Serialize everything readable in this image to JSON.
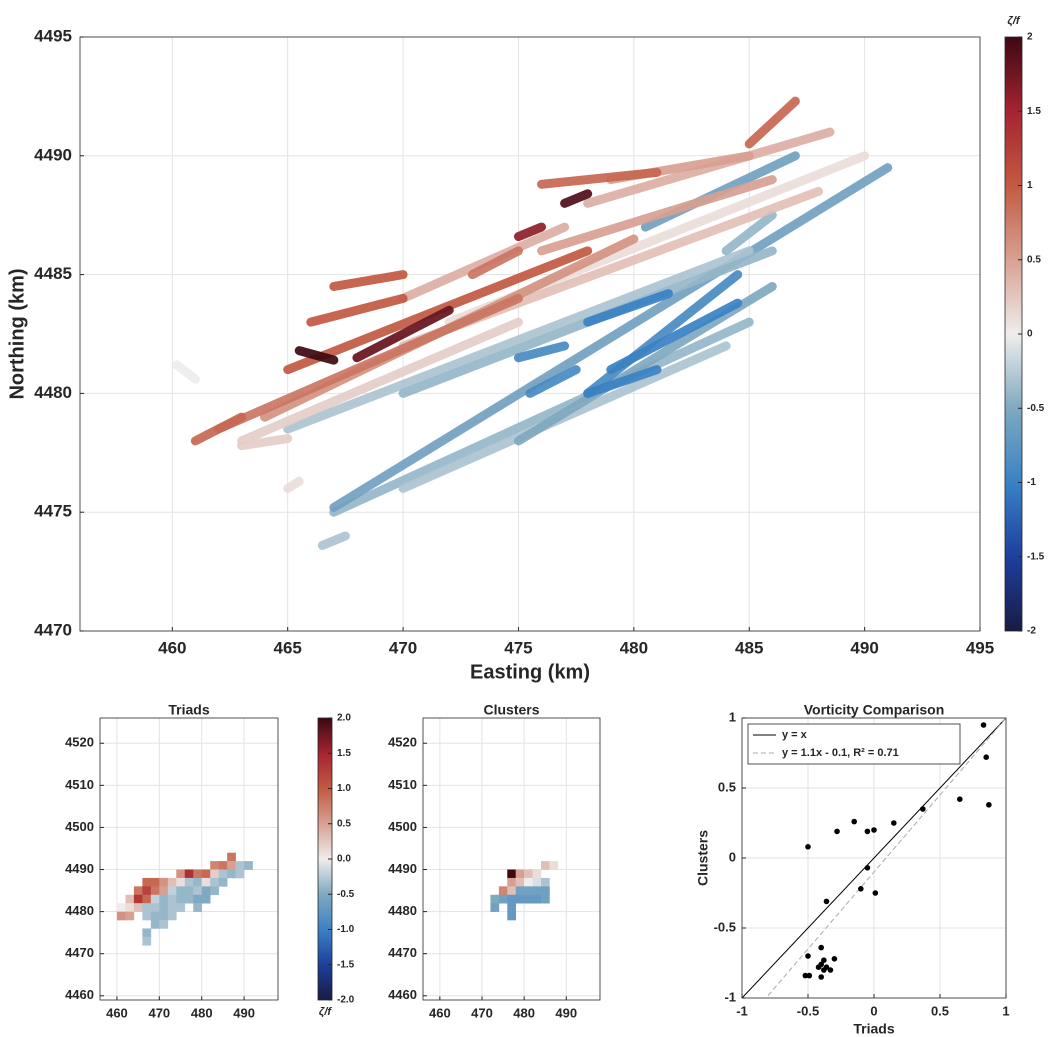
{
  "colormap": [
    [
      -2,
      "#181c43"
    ],
    [
      -1.5,
      "#1d3f9e"
    ],
    [
      -1,
      "#3a82c4"
    ],
    [
      -0.5,
      "#7fa9c0"
    ],
    [
      0,
      "#efedec"
    ],
    [
      0.5,
      "#d9a092"
    ],
    [
      1,
      "#c25a42"
    ],
    [
      1.5,
      "#a52430"
    ],
    [
      2,
      "#3c0912"
    ]
  ],
  "chart_data": [
    {
      "type": "track",
      "xlabel": "Easting (km)",
      "ylabel": "Northing (km)",
      "xlim": [
        456,
        495
      ],
      "ylim": [
        4470,
        4495
      ],
      "xticks": [
        460,
        465,
        470,
        475,
        480,
        485,
        490,
        495
      ],
      "yticks": [
        4470,
        4475,
        4480,
        4485,
        4490,
        4495
      ],
      "grid": true,
      "tracks": [
        {
          "x": [
            467,
            485
          ],
          "y": [
            4475,
            4483
          ],
          "value": -0.4
        },
        {
          "x": [
            467,
            491
          ],
          "y": [
            4475.2,
            4489.5
          ],
          "value": -0.6
        },
        {
          "x": [
            470,
            484
          ],
          "y": [
            4476,
            4482
          ],
          "value": -0.3
        },
        {
          "x": [
            475,
            486
          ],
          "y": [
            4478,
            4484.5
          ],
          "value": -0.5
        },
        {
          "x": [
            465,
            485
          ],
          "y": [
            4478.5,
            4486
          ],
          "value": -0.3
        },
        {
          "x": [
            470,
            486
          ],
          "y": [
            4480,
            4486
          ],
          "value": -0.4
        },
        {
          "x": [
            480.5,
            487
          ],
          "y": [
            4487,
            4490
          ],
          "value": -0.6
        },
        {
          "x": [
            484,
            486
          ],
          "y": [
            4486,
            4487.5
          ],
          "value": -0.4
        },
        {
          "x": [
            466.5,
            467.5
          ],
          "y": [
            4473.6,
            4474
          ],
          "value": -0.3
        },
        {
          "x": [
            478,
            484.5
          ],
          "y": [
            4480,
            4485
          ],
          "value": -0.9
        },
        {
          "x": [
            479,
            484.5
          ],
          "y": [
            4481,
            4483.8
          ],
          "value": -1.0
        },
        {
          "x": [
            478,
            481.5
          ],
          "y": [
            4483,
            4484.2
          ],
          "value": -1.0
        },
        {
          "x": [
            478,
            481
          ],
          "y": [
            4480,
            4481
          ],
          "value": -1.0
        },
        {
          "x": [
            475,
            477
          ],
          "y": [
            4481.5,
            4482
          ],
          "value": -0.9
        },
        {
          "x": [
            475.5,
            477.5
          ],
          "y": [
            4480,
            4481
          ],
          "value": -0.9
        },
        {
          "x": [
            460.2,
            461
          ],
          "y": [
            4481.2,
            4480.6
          ],
          "value": 0.0
        },
        {
          "x": [
            465,
            465.5
          ],
          "y": [
            4476,
            4476.3
          ],
          "value": 0.1
        },
        {
          "x": [
            463,
            475
          ],
          "y": [
            4478,
            4483
          ],
          "value": 0.2
        },
        {
          "x": [
            463,
            465
          ],
          "y": [
            4477.8,
            4478.1
          ],
          "value": 0.2
        },
        {
          "x": [
            472,
            490
          ],
          "y": [
            4483,
            4490
          ],
          "value": 0.1
        },
        {
          "x": [
            470,
            488
          ],
          "y": [
            4482,
            4488.5
          ],
          "value": 0.3
        },
        {
          "x": [
            470,
            477
          ],
          "y": [
            4484,
            4487
          ],
          "value": 0.4
        },
        {
          "x": [
            478,
            488.5
          ],
          "y": [
            4488,
            4491
          ],
          "value": 0.4
        },
        {
          "x": [
            476,
            486
          ],
          "y": [
            4486,
            4489
          ],
          "value": 0.5
        },
        {
          "x": [
            479,
            485
          ],
          "y": [
            4489,
            4490
          ],
          "value": 0.5
        },
        {
          "x": [
            464,
            480
          ],
          "y": [
            4479,
            4486.5
          ],
          "value": 0.6
        },
        {
          "x": [
            462,
            475
          ],
          "y": [
            4478.5,
            4484
          ],
          "value": 0.8
        },
        {
          "x": [
            473,
            475
          ],
          "y": [
            4485,
            4486
          ],
          "value": 0.8
        },
        {
          "x": [
            461,
            463
          ],
          "y": [
            4478,
            4479
          ],
          "value": 0.9
        },
        {
          "x": [
            476,
            481
          ],
          "y": [
            4488.8,
            4489.3
          ],
          "value": 0.9
        },
        {
          "x": [
            485,
            487
          ],
          "y": [
            4490.5,
            4492.3
          ],
          "value": 0.9
        },
        {
          "x": [
            465,
            478
          ],
          "y": [
            4481,
            4486
          ],
          "value": 1.0
        },
        {
          "x": [
            467,
            470
          ],
          "y": [
            4484.5,
            4485
          ],
          "value": 1.0
        },
        {
          "x": [
            466,
            470
          ],
          "y": [
            4483,
            4484
          ],
          "value": 1.0
        },
        {
          "x": [
            475,
            476
          ],
          "y": [
            4486.6,
            4487
          ],
          "value": 1.6
        },
        {
          "x": [
            468,
            472
          ],
          "y": [
            4481.5,
            4483.5
          ],
          "value": 1.8
        },
        {
          "x": [
            477,
            478
          ],
          "y": [
            4488,
            4488.4
          ],
          "value": 1.9
        },
        {
          "x": [
            465.5,
            467
          ],
          "y": [
            4481.8,
            4481.4
          ],
          "value": 2.0
        }
      ]
    },
    {
      "type": "colorbar",
      "label": "ζ/f",
      "label_position": "top",
      "ylim": [
        -2,
        2
      ],
      "yticks": [
        -2,
        -1.5,
        -1,
        -0.5,
        0,
        0.5,
        1,
        1.5,
        2
      ]
    },
    {
      "type": "heatmap",
      "title": "Triads",
      "xlim": [
        456,
        498
      ],
      "ylim": [
        4459,
        4526
      ],
      "xticks": [
        460,
        470,
        480,
        490
      ],
      "yticks": [
        4460,
        4470,
        4480,
        4490,
        4500,
        4510,
        4520
      ],
      "grid": true,
      "cell_size": 2,
      "cells": [
        [
          486,
          4492,
          0.8
        ],
        [
          482,
          4490,
          0.7
        ],
        [
          484,
          4490,
          0.8
        ],
        [
          486,
          4490,
          0.5
        ],
        [
          488,
          4490,
          -0.3
        ],
        [
          490,
          4490,
          -0.4
        ],
        [
          474,
          4488,
          0.6
        ],
        [
          476,
          4488,
          1.4
        ],
        [
          478,
          4488,
          0.8
        ],
        [
          480,
          4488,
          0.9
        ],
        [
          482,
          4488,
          0.2
        ],
        [
          484,
          4488,
          -0.3
        ],
        [
          486,
          4488,
          -0.4
        ],
        [
          488,
          4488,
          -0.3
        ],
        [
          466,
          4486,
          0.9
        ],
        [
          468,
          4486,
          0.9
        ],
        [
          470,
          4486,
          0.6
        ],
        [
          472,
          4486,
          0.3
        ],
        [
          474,
          4486,
          0.1
        ],
        [
          476,
          4486,
          -0.3
        ],
        [
          478,
          4486,
          -0.4
        ],
        [
          480,
          4486,
          0.1
        ],
        [
          482,
          4486,
          -0.3
        ],
        [
          484,
          4486,
          -0.4
        ],
        [
          464,
          4484,
          0.8
        ],
        [
          466,
          4484,
          1.2
        ],
        [
          468,
          4484,
          0.8
        ],
        [
          470,
          4484,
          0.5
        ],
        [
          472,
          4484,
          -0.2
        ],
        [
          474,
          4484,
          -0.4
        ],
        [
          476,
          4484,
          -0.4
        ],
        [
          478,
          4484,
          -0.3
        ],
        [
          480,
          4484,
          -0.5
        ],
        [
          482,
          4484,
          -0.4
        ],
        [
          462,
          4482,
          0.3
        ],
        [
          464,
          4482,
          1.3
        ],
        [
          466,
          4482,
          0.9
        ],
        [
          468,
          4482,
          -0.2
        ],
        [
          470,
          4482,
          -0.4
        ],
        [
          472,
          4482,
          -0.3
        ],
        [
          474,
          4482,
          -0.4
        ],
        [
          476,
          4482,
          -0.4
        ],
        [
          478,
          4482,
          -0.5
        ],
        [
          480,
          4482,
          -0.5
        ],
        [
          460,
          4480,
          0.0
        ],
        [
          462,
          4480,
          0.1
        ],
        [
          464,
          4480,
          0.3
        ],
        [
          466,
          4480,
          -0.3
        ],
        [
          468,
          4480,
          -0.3
        ],
        [
          470,
          4480,
          -0.4
        ],
        [
          472,
          4480,
          -0.3
        ],
        [
          474,
          4480,
          -0.3
        ],
        [
          478,
          4480,
          -0.4
        ],
        [
          460,
          4478,
          0.6
        ],
        [
          462,
          4478,
          0.5
        ],
        [
          466,
          4478,
          -0.3
        ],
        [
          468,
          4478,
          -0.4
        ],
        [
          470,
          4478,
          -0.4
        ],
        [
          472,
          4478,
          -0.3
        ],
        [
          468,
          4476,
          -0.4
        ],
        [
          470,
          4476,
          -0.3
        ],
        [
          466,
          4474,
          -0.4
        ],
        [
          466,
          4472,
          -0.3
        ]
      ]
    },
    {
      "type": "colorbar",
      "label": "ζ/f",
      "label_position": "bottom",
      "ylim": [
        -2,
        2
      ],
      "yticks": [
        {
          "value": -2,
          "label": "-2.0"
        },
        {
          "value": -1.5,
          "label": "-1.5"
        },
        {
          "value": -1,
          "label": "-1.0"
        },
        {
          "value": -0.5,
          "label": "-0.5"
        },
        {
          "value": 0,
          "label": "0.0"
        },
        {
          "value": 0.5,
          "label": "0.5"
        },
        {
          "value": 1,
          "label": "1.0"
        },
        {
          "value": 1.5,
          "label": "1.5"
        },
        {
          "value": 2,
          "label": "2.0"
        }
      ]
    },
    {
      "type": "heatmap",
      "title": "Clusters",
      "xlim": [
        456,
        498
      ],
      "ylim": [
        4459,
        4526
      ],
      "xticks": [
        460,
        470,
        480,
        490
      ],
      "yticks": [
        4460,
        4470,
        4480,
        4490,
        4500,
        4510,
        4520
      ],
      "grid": true,
      "cell_size": 2,
      "cells": [
        [
          484,
          4490,
          0.3
        ],
        [
          486,
          4490,
          0.1
        ],
        [
          476,
          4488,
          2.0
        ],
        [
          478,
          4488,
          0.5
        ],
        [
          480,
          4488,
          0.3
        ],
        [
          482,
          4488,
          0.1
        ],
        [
          476,
          4486,
          0.5
        ],
        [
          478,
          4486,
          0.3
        ],
        [
          480,
          4486,
          0.0
        ],
        [
          482,
          4486,
          -0.1
        ],
        [
          484,
          4486,
          -0.3
        ],
        [
          474,
          4484,
          0.7
        ],
        [
          476,
          4484,
          0.3
        ],
        [
          478,
          4484,
          -0.6
        ],
        [
          480,
          4484,
          -0.6
        ],
        [
          482,
          4484,
          -0.6
        ],
        [
          484,
          4484,
          -0.6
        ],
        [
          472,
          4482,
          -0.5
        ],
        [
          474,
          4482,
          -0.6
        ],
        [
          476,
          4482,
          -0.7
        ],
        [
          478,
          4482,
          -0.7
        ],
        [
          480,
          4482,
          -0.7
        ],
        [
          482,
          4482,
          -0.7
        ],
        [
          484,
          4482,
          -0.6
        ],
        [
          472,
          4480,
          -0.6
        ],
        [
          476,
          4480,
          -0.7
        ],
        [
          476,
          4478,
          -0.7
        ]
      ]
    },
    {
      "type": "scatter",
      "title": "Vorticity Comparison",
      "xlabel": "Triads",
      "ylabel": "Clusters",
      "xlim": [
        -1,
        1
      ],
      "ylim": [
        -1,
        1
      ],
      "xticks": [
        -1,
        -0.5,
        0,
        0.5,
        1
      ],
      "yticks": [
        -1,
        -0.5,
        0,
        0.5,
        1
      ],
      "grid": true,
      "color": "#000000",
      "x": [
        0.83,
        0.85,
        0.87,
        0.65,
        0.37,
        0.15,
        -0.15,
        -0.05,
        0,
        -0.28,
        -0.5,
        -0.05,
        -0.1,
        0.01,
        -0.36,
        -0.4,
        -0.5,
        -0.38,
        -0.4,
        -0.3,
        -0.36,
        -0.42,
        -0.33,
        -0.52,
        -0.49,
        -0.4,
        -0.38
      ],
      "y": [
        0.95,
        0.72,
        0.38,
        0.42,
        0.35,
        0.25,
        0.26,
        0.19,
        0.2,
        0.19,
        0.08,
        -0.07,
        -0.22,
        -0.25,
        -0.31,
        -0.64,
        -0.7,
        -0.73,
        -0.76,
        -0.72,
        -0.78,
        -0.78,
        -0.8,
        -0.84,
        -0.84,
        -0.85,
        -0.8
      ],
      "lines": [
        {
          "name": "y = x",
          "slope": 1,
          "intercept": 0,
          "color": "#000000",
          "dashed": false
        },
        {
          "name": "y = 1.1x - 0.1, R² = 0.71",
          "slope": 1.1,
          "intercept": -0.1,
          "color": "#aaaaaa",
          "dashed": true
        }
      ],
      "legend": "upper left"
    }
  ]
}
